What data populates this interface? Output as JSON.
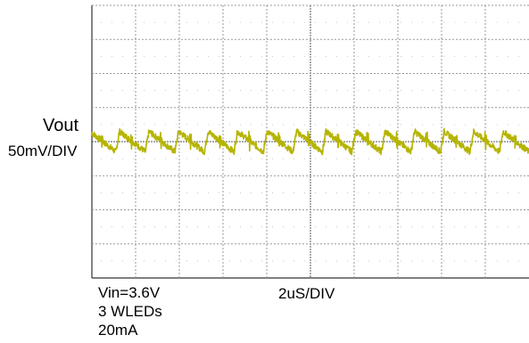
{
  "channel": {
    "name": "Vout",
    "scale": "50mV/DIV",
    "trace_color": "#b5b400"
  },
  "timebase": {
    "scale": "2uS/DIV"
  },
  "conditions": [
    "Vin=3.6V",
    "3 WLEDs",
    "20mA"
  ],
  "chart_data": {
    "type": "line",
    "title": "",
    "xlabel": "2uS/DIV",
    "ylabel": "Vout 50mV/DIV",
    "grid": true,
    "grid_divisions": {
      "x": 10,
      "y": 8
    },
    "x_unit": "us",
    "y_unit": "mV (AC, relative to trace center)",
    "xlim": [
      0,
      20
    ],
    "ylim": [
      -200,
      200
    ],
    "series": [
      {
        "waveform": "sawtooth with spikes",
        "period_us": 1.35,
        "peak_to_peak_mV": 30,
        "center_mV": 0
      }
    ]
  }
}
